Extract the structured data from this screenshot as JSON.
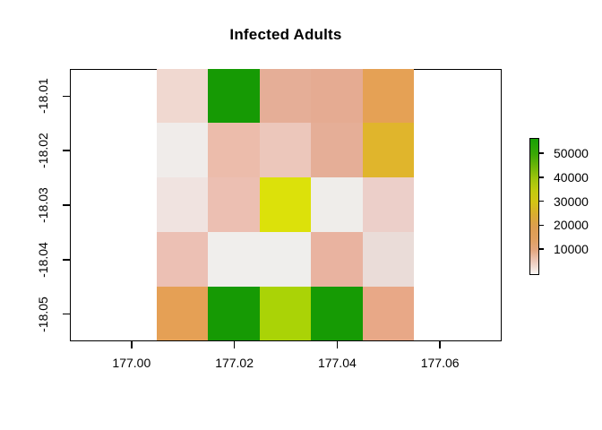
{
  "chart_data": {
    "type": "heatmap",
    "title": "Infected Adults",
    "xlabel": "",
    "ylabel": "",
    "xlim": [
      176.988,
      177.072
    ],
    "ylim": [
      -18.055,
      -18.005
    ],
    "grid": false,
    "x_centers": [
      177.01,
      177.02,
      177.03,
      177.04,
      177.05
    ],
    "y_centers": [
      -18.01,
      -18.02,
      -18.03,
      -18.04,
      -18.05
    ],
    "cell_half_width": 0.005,
    "cell_half_height": 0.005,
    "x_ticks": [
      {
        "value": 177.0,
        "label": "177.00"
      },
      {
        "value": 177.02,
        "label": "177.02"
      },
      {
        "value": 177.04,
        "label": "177.04"
      },
      {
        "value": 177.06,
        "label": "177.06"
      }
    ],
    "y_ticks": [
      {
        "value": -18.01,
        "label": "-18.01"
      },
      {
        "value": -18.02,
        "label": "-18.02"
      },
      {
        "value": -18.03,
        "label": "-18.03"
      },
      {
        "value": -18.04,
        "label": "-18.04"
      },
      {
        "value": -18.05,
        "label": "-18.05"
      }
    ],
    "values": [
      [
        3500,
        55000,
        9000,
        9800,
        18500
      ],
      [
        1200,
        7000,
        5200,
        9000,
        26000
      ],
      [
        2500,
        6500,
        32000,
        900,
        4200
      ],
      [
        6000,
        600,
        700,
        8200,
        3000
      ],
      [
        18800,
        55000,
        38500,
        54500,
        10500
      ]
    ],
    "cell_colors": [
      [
        "#f0d8d0",
        "#169a04",
        "#e5ae97",
        "#e5ab92",
        "#e5a155"
      ],
      [
        "#f0ecea",
        "#ecbcab",
        "#ecc7bb",
        "#e5ae97",
        "#e0b52c"
      ],
      [
        "#f0e3e0",
        "#ecbfb2",
        "#dce10a",
        "#efedea",
        "#eccfc9"
      ],
      [
        "#ecc0b4",
        "#f0eeec",
        "#efeeec",
        "#e9b3a0",
        "#eadcd8"
      ],
      [
        "#e5a055",
        "#169a04",
        "#aad306",
        "#169b04",
        "#e8a887"
      ]
    ],
    "legend": {
      "position": "right",
      "min": 0,
      "max": 56400,
      "ticks": [
        {
          "value": 50000,
          "label": "50000"
        },
        {
          "value": 40000,
          "label": "40000"
        },
        {
          "value": 30000,
          "label": "30000"
        },
        {
          "value": 20000,
          "label": "20000"
        },
        {
          "value": 10000,
          "label": "10000"
        }
      ],
      "gradient_stops": [
        {
          "value": 0,
          "color": "#fcf8f6"
        },
        {
          "value": 3000,
          "color": "#f2dcd2"
        },
        {
          "value": 6000,
          "color": "#ecc4b2"
        },
        {
          "value": 10000,
          "color": "#e3a67f"
        },
        {
          "value": 15000,
          "color": "#df9f5d"
        },
        {
          "value": 20000,
          "color": "#dc9e4f"
        },
        {
          "value": 25000,
          "color": "#d9ad30"
        },
        {
          "value": 30000,
          "color": "#d3c414"
        },
        {
          "value": 35000,
          "color": "#c0ca0e"
        },
        {
          "value": 40000,
          "color": "#9dc40d"
        },
        {
          "value": 45000,
          "color": "#6cb509"
        },
        {
          "value": 50000,
          "color": "#3aa806"
        },
        {
          "value": 56400,
          "color": "#17a104"
        }
      ]
    },
    "colors": {
      "background": "#ffffff",
      "axis": "#000000",
      "text": "#000000"
    }
  }
}
